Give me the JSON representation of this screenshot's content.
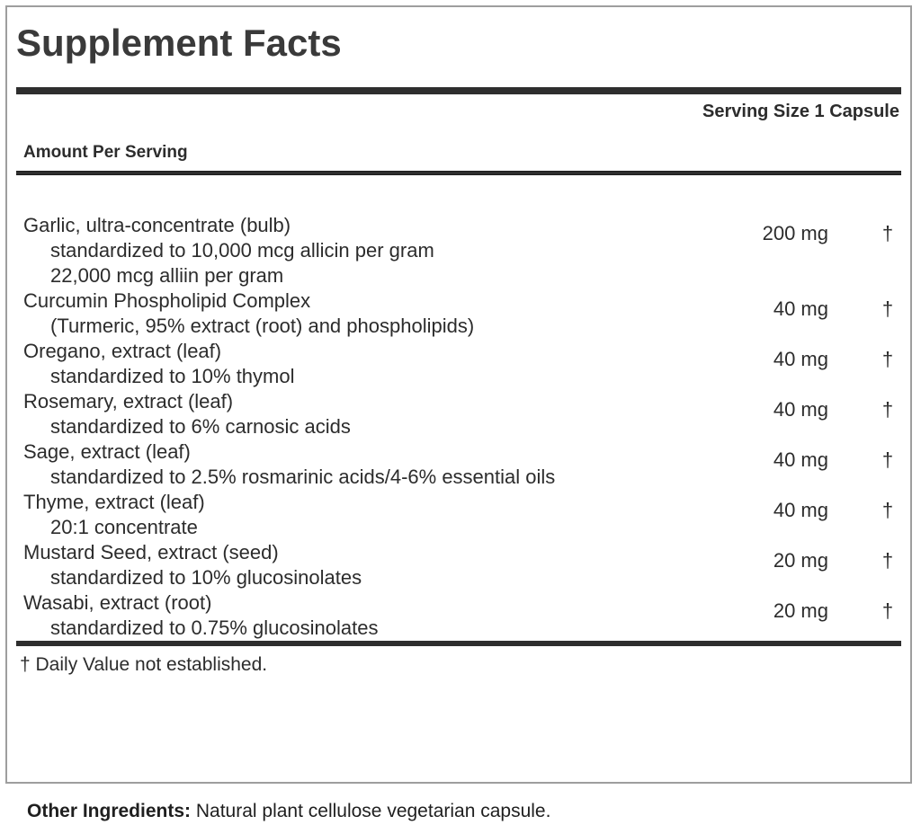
{
  "label": {
    "title": "Supplement Facts",
    "serving_size": "Serving Size 1 Capsule",
    "column_header": "Amount Per Serving",
    "rows": [
      {
        "name": "Garlic, ultra-concentrate (bulb)",
        "amount": "200 mg",
        "daily_value": "†",
        "notes": [
          "standardized to 10,000 mcg allicin per gram",
          "22,000 mcg alliin per gram"
        ]
      },
      {
        "name": "Curcumin Phospholipid Complex",
        "amount": "40 mg",
        "daily_value": "†",
        "notes": [
          "(Turmeric, 95% extract (root) and phospholipids)"
        ]
      },
      {
        "name": "Oregano, extract (leaf)",
        "amount": "40 mg",
        "daily_value": "†",
        "notes": [
          "standardized to 10% thymol"
        ]
      },
      {
        "name": "Rosemary, extract (leaf)",
        "amount": "40 mg",
        "daily_value": "†",
        "notes": [
          "standardized to 6% carnosic acids"
        ]
      },
      {
        "name": "Sage, extract (leaf)",
        "amount": "40 mg",
        "daily_value": "†",
        "notes": [
          "standardized to 2.5% rosmarinic acids/4-6% essential oils"
        ]
      },
      {
        "name": "Thyme, extract (leaf)",
        "amount": "40 mg",
        "daily_value": "†",
        "notes": [
          "20:1 concentrate"
        ]
      },
      {
        "name": "Mustard Seed, extract (seed)",
        "amount": "20 mg",
        "daily_value": "†",
        "notes": [
          "standardized to 10% glucosinolates"
        ]
      },
      {
        "name": "Wasabi, extract (root)",
        "amount": "20 mg",
        "daily_value": "†",
        "notes": [
          "standardized to 0.75% glucosinolates"
        ]
      }
    ],
    "footnote": "† Daily Value not established.",
    "other_ingredients_label": "Other Ingredients:",
    "other_ingredients_text": " Natural plant cellulose vegetarian capsule."
  },
  "colors": {
    "text": "#2c2c2c",
    "bars": "#2e2e2e",
    "border": "#9e9e9e",
    "background": "#ffffff"
  }
}
